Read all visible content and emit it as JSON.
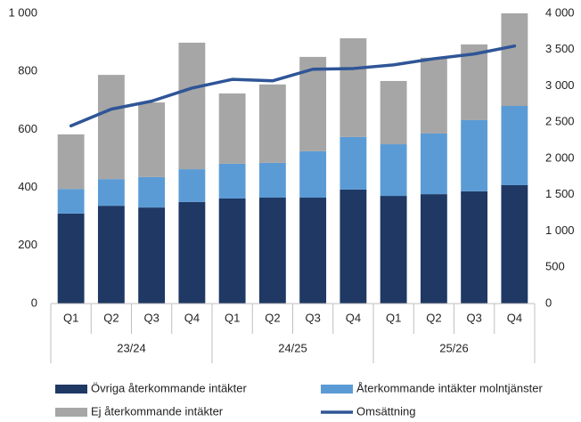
{
  "chart_data": {
    "type": "bar-line",
    "categories": [
      "Q1",
      "Q2",
      "Q3",
      "Q4",
      "Q1",
      "Q2",
      "Q3",
      "Q4",
      "Q1",
      "Q2",
      "Q3",
      "Q4"
    ],
    "groups": [
      "23/24",
      "24/25",
      "25/26"
    ],
    "stacked": true,
    "series": [
      {
        "name": "Övriga återkommande intäkter",
        "color": "#1f3864",
        "type": "bar",
        "values": [
          310,
          337,
          331,
          350,
          362,
          365,
          365,
          393,
          371,
          377,
          387,
          408
        ]
      },
      {
        "name": "Återkommande intäkter molntjänster",
        "color": "#5b9bd5",
        "type": "bar",
        "values": [
          85,
          92,
          105,
          113,
          120,
          120,
          160,
          181,
          178,
          209,
          245,
          273
        ]
      },
      {
        "name": "Ej återkommande intäkter",
        "color": "#a6a6a6",
        "type": "bar",
        "values": [
          188,
          359,
          257,
          436,
          242,
          270,
          325,
          340,
          218,
          261,
          261,
          319
        ]
      },
      {
        "name": "Omsättning",
        "color": "#2f5597",
        "type": "line",
        "axis": "y2",
        "values": [
          2450,
          2680,
          2790,
          2970,
          3090,
          3070,
          3230,
          3240,
          3290,
          3375,
          3440,
          3550
        ]
      }
    ],
    "ylim": [
      0,
      1000
    ],
    "yticks": [
      0,
      200,
      400,
      600,
      800,
      {
        "value": 1000,
        "label": "1 000"
      }
    ],
    "y2lim": [
      0,
      4000
    ],
    "y2ticks": [
      0,
      500,
      {
        "value": 1000,
        "label": "1 000"
      },
      {
        "value": 1500,
        "label": "1 500"
      },
      {
        "value": 2000,
        "label": "2 000"
      },
      {
        "value": 2500,
        "label": "2 500"
      },
      {
        "value": 3000,
        "label": "3 000"
      },
      {
        "value": 3500,
        "label": "3 500"
      },
      {
        "value": 4000,
        "label": "4 000"
      }
    ],
    "grid": false,
    "legend": "bottom"
  }
}
